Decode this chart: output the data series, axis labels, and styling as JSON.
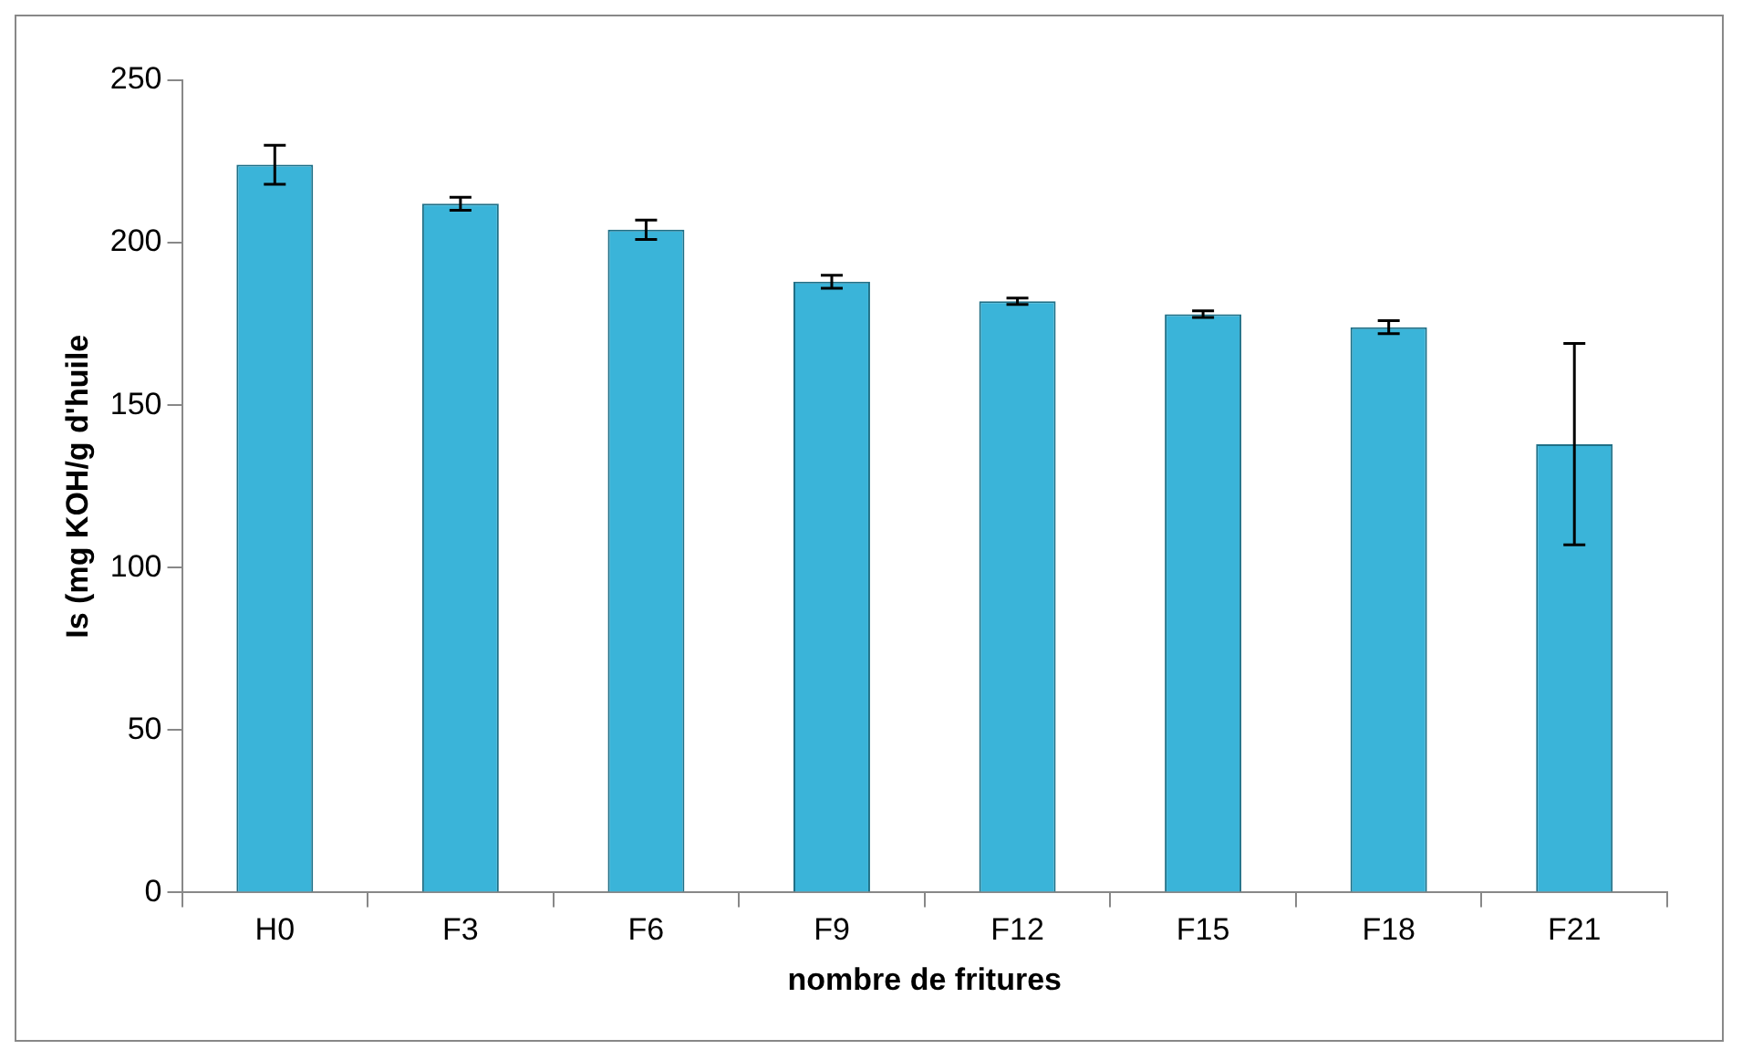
{
  "chart_data": {
    "type": "bar",
    "xlabel": "nombre de fritures",
    "ylabel": "Is (mg KOH/g d'huile",
    "categories": [
      "H0",
      "F3",
      "F6",
      "F9",
      "F12",
      "F15",
      "F18",
      "F21"
    ],
    "values": [
      224,
      212,
      204,
      188,
      182,
      178,
      174,
      138
    ],
    "errors": [
      6,
      2,
      3,
      2,
      1,
      1,
      2,
      31
    ],
    "color": "#3ab4d9",
    "ylim": [
      0,
      250
    ],
    "yticks": [
      0,
      50,
      100,
      150,
      200,
      250
    ],
    "grid": false,
    "legend": false
  }
}
